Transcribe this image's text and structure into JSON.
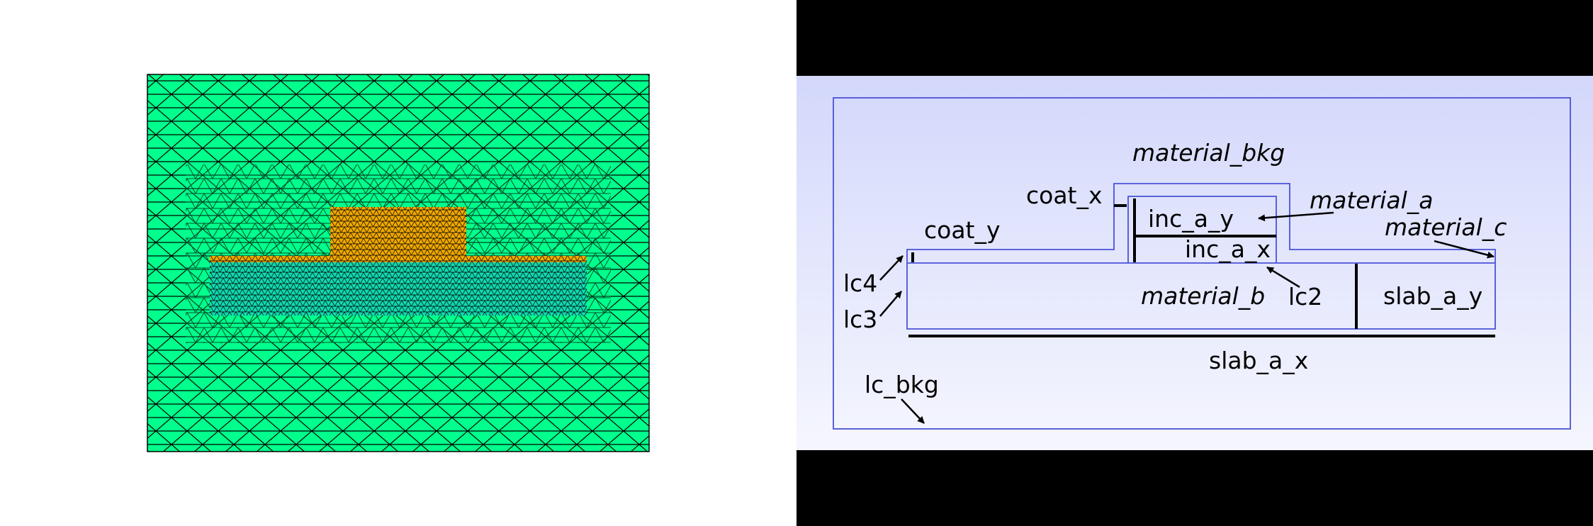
{
  "mesh": {
    "colors": {
      "background_material": "#00ff8c",
      "inclusion_material": "#f0a800",
      "coat_material": "#f0a800",
      "slab_material": "#10d9b0",
      "mesh_lines": "#000000"
    }
  },
  "schematic": {
    "colors": {
      "outline": "#4a52d6",
      "gradient_top": "#d3d8fb",
      "gradient_bottom": "#f5f6fe",
      "dimension_lines": "#000000"
    },
    "labels": {
      "material_bkg": "material_bkg",
      "material_a": "material_a",
      "material_b": "material_b",
      "material_c": "material_c",
      "coat_x": "coat_x",
      "coat_y": "coat_y",
      "inc_a_y": "inc_a_y",
      "inc_a_x": "inc_a_x",
      "slab_a_y": "slab_a_y",
      "slab_a_x": "slab_a_x",
      "lc2": "lc2",
      "lc3": "lc3",
      "lc4": "lc4",
      "lc_bkg": "lc_bkg"
    }
  }
}
